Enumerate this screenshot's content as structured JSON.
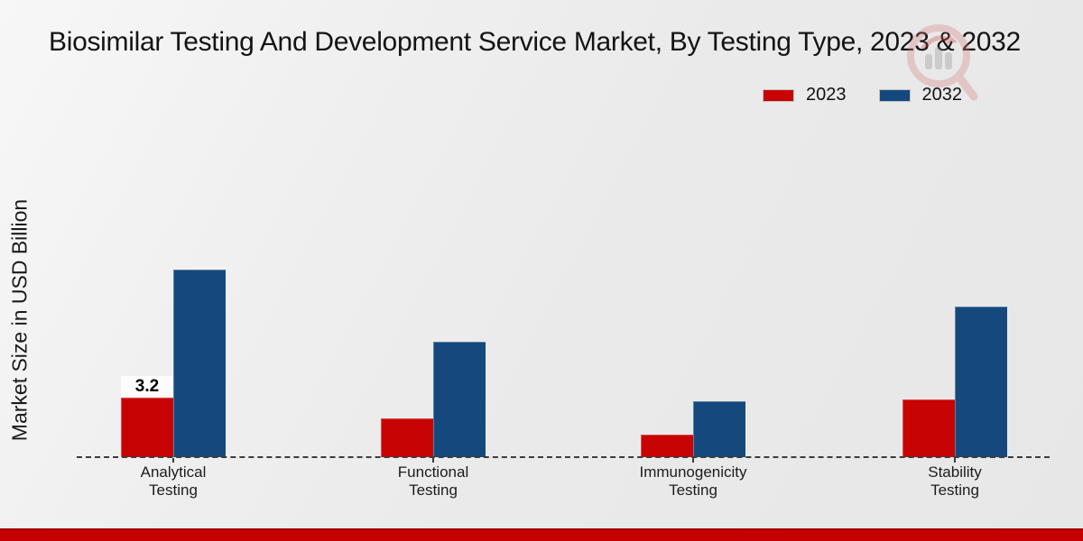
{
  "header": {
    "title": "Biosimilar Testing And Development Service Market, By Testing Type, 2023 & 2032"
  },
  "chart_data": {
    "type": "bar",
    "title": "Biosimilar Testing And Development Service Market, By Testing Type, 2023 & 2032",
    "xlabel": "",
    "ylabel": "Market Size in USD Billion",
    "categories": [
      "Analytical Testing",
      "Functional Testing",
      "Immunogenicity Testing",
      "Stability Testing"
    ],
    "series": [
      {
        "name": "2023",
        "color": "#c80303",
        "values": [
          3.2,
          2.1,
          1.2,
          3.1
        ]
      },
      {
        "name": "2032",
        "color": "#15497e",
        "values": [
          10.1,
          6.2,
          3.0,
          8.1
        ]
      }
    ],
    "annotations": [
      {
        "series_index": 0,
        "category_index": 0,
        "text": "3.2"
      }
    ],
    "ylim": [
      0,
      10.5
    ],
    "grid": false,
    "baseline_style": "dashed",
    "legend_position": "top-right"
  },
  "legend": {
    "items": [
      {
        "label": "2023",
        "color": "#c80303"
      },
      {
        "label": "2032",
        "color": "#15497e"
      }
    ]
  },
  "icons": {
    "watermark_icon": "magnifier-bar-chart-logo"
  },
  "footer": {
    "accent_color": "#c40000"
  }
}
